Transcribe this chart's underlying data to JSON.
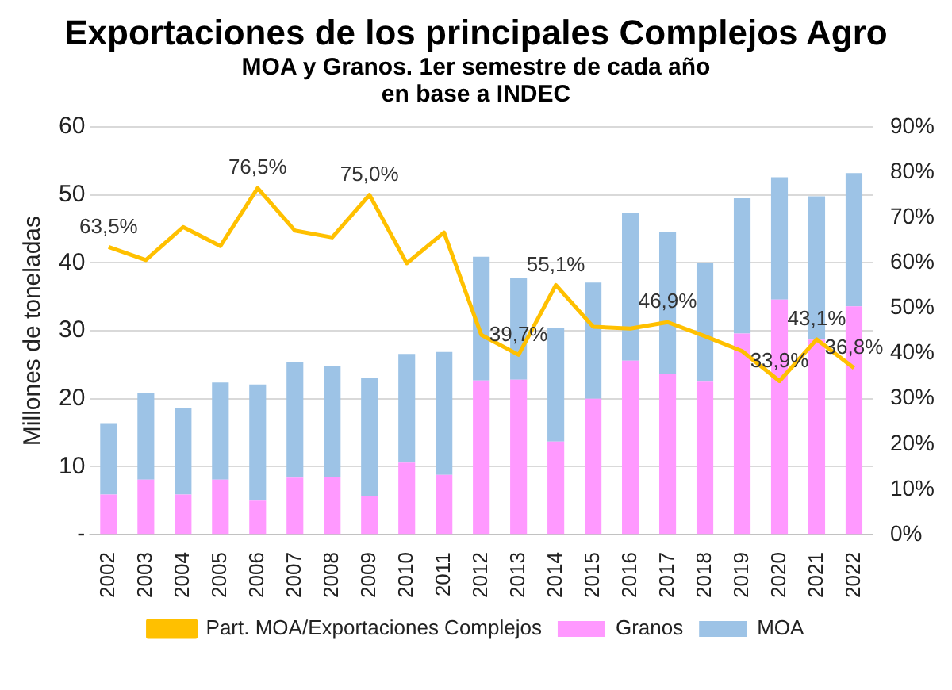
{
  "chart_data": {
    "type": "bar",
    "title": "Exportaciones de los principales Complejos Agro",
    "subtitle": "MOA y Granos. 1er semestre de cada año",
    "annotations": [
      "en base a INDEC"
    ],
    "ylabel": "Millones de toneladas",
    "categories": [
      "2002",
      "2003",
      "2004",
      "2005",
      "2006",
      "2007",
      "2008",
      "2009",
      "2010",
      "2011",
      "2012",
      "2013",
      "2014",
      "2015",
      "2016",
      "2017",
      "2018",
      "2019",
      "2020",
      "2021",
      "2022"
    ],
    "stacked": true,
    "legend": "bottom",
    "grid": "y",
    "marker": "none",
    "ylim": [
      0,
      60
    ],
    "yticks": [
      {
        "value": 0,
        "label": "-"
      },
      10,
      20,
      30,
      40,
      50,
      60
    ],
    "y2lim": [
      0,
      90
    ],
    "y2ticks": [
      {
        "value": 0,
        "label": "0%"
      },
      {
        "value": 10,
        "label": "10%"
      },
      {
        "value": 20,
        "label": "20%"
      },
      {
        "value": 30,
        "label": "30%"
      },
      {
        "value": 40,
        "label": "40%"
      },
      {
        "value": 50,
        "label": "50%"
      },
      {
        "value": 60,
        "label": "60%"
      },
      {
        "value": 70,
        "label": "70%"
      },
      {
        "value": 80,
        "label": "80%"
      },
      {
        "value": 90,
        "label": "90%"
      }
    ],
    "series": [
      {
        "name": "Granos",
        "color": "#ff99ff",
        "values": [
          5.9,
          8.1,
          5.9,
          8.1,
          5.0,
          8.4,
          8.5,
          5.7,
          10.6,
          8.8,
          22.7,
          22.8,
          13.7,
          20.0,
          25.6,
          23.6,
          22.5,
          29.6,
          34.6,
          28.7,
          33.6
        ]
      },
      {
        "name": "MOA",
        "color": "#9dc3e6",
        "values": [
          10.5,
          12.7,
          12.7,
          14.3,
          17.1,
          17.0,
          16.3,
          17.4,
          16.0,
          18.1,
          18.2,
          14.9,
          16.7,
          17.1,
          21.7,
          20.9,
          17.5,
          19.9,
          18.0,
          21.1,
          19.6
        ]
      },
      {
        "name": "Part. MOA/Exportaciones Complejos",
        "type": "line",
        "axis": "y2",
        "color": "#ffc000",
        "values": [
          63.5,
          60.6,
          67.9,
          63.7,
          76.5,
          67.1,
          65.6,
          75.0,
          59.9,
          66.7,
          44.1,
          39.7,
          55.1,
          45.9,
          45.5,
          46.9,
          43.8,
          40.5,
          33.9,
          43.1,
          36.8
        ],
        "value_labels": [
          "63,5%",
          null,
          null,
          null,
          "76,5%",
          null,
          null,
          "75,0%",
          null,
          null,
          null,
          "39,7%",
          "55,1%",
          null,
          null,
          "46,9%",
          null,
          null,
          "33,9%",
          "43,1%",
          "36,8%"
        ]
      }
    ]
  }
}
